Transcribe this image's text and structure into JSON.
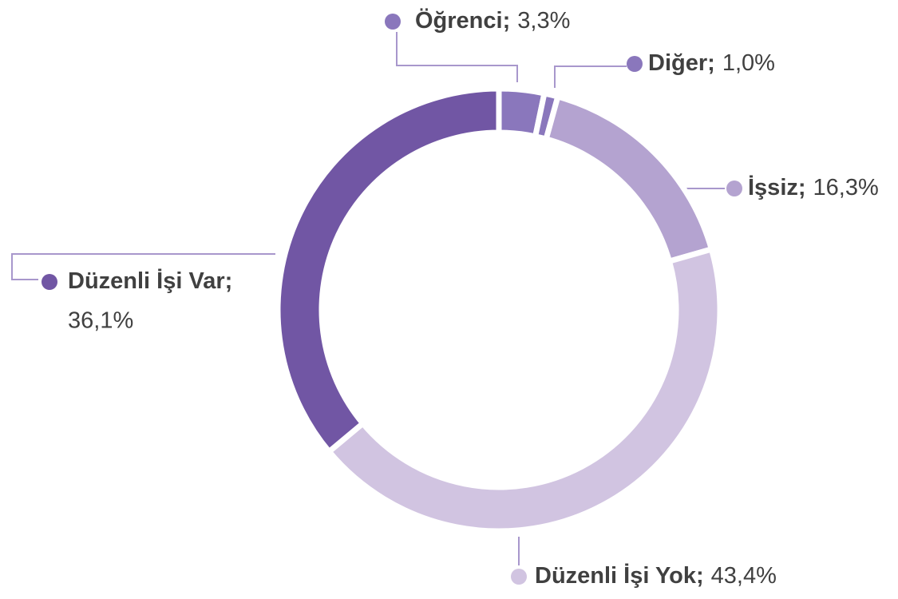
{
  "chart_data": {
    "type": "donut",
    "categories": [
      "Öğrenci",
      "Diğer",
      "İşsiz",
      "Düzenli İşi Yok",
      "Düzenli İşi Var"
    ],
    "values": [
      3.3,
      1.0,
      16.3,
      43.4,
      36.1
    ],
    "value_labels": [
      "3,3%",
      "1,0%",
      "16,3%",
      "43,4%",
      "36,1%"
    ],
    "separator": ";",
    "colors": [
      "#8a77bc",
      "#8a77bc",
      "#b4a3d0",
      "#d1c4e1",
      "#7156a4"
    ]
  }
}
